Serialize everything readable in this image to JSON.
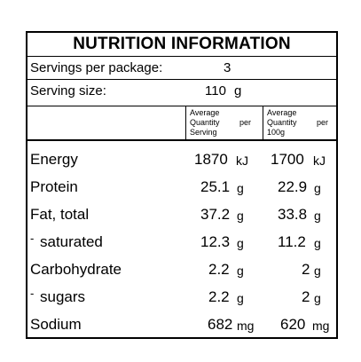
{
  "title": "NUTRITION INFORMATION",
  "servings": {
    "label": "Servings per package:",
    "value": "3"
  },
  "serving_size": {
    "label": "Serving size:",
    "value": "110",
    "unit": "g"
  },
  "header": {
    "col1": {
      "line1": "Average",
      "line2a": "Quantity",
      "line2b": "per",
      "line3": "Serving"
    },
    "col2": {
      "line1": "Average",
      "line2a": "Quantity",
      "line2b": "per",
      "line3": "100g"
    }
  },
  "rows": [
    {
      "name": "Energy",
      "per_serving": "1870",
      "per_serving_unit": "kJ",
      "per_100g": "1700",
      "per_100g_unit": "kJ"
    },
    {
      "name": "Protein",
      "per_serving": "25.1",
      "per_serving_unit": "g",
      "per_100g": "22.9",
      "per_100g_unit": "g"
    },
    {
      "name": "Fat, total",
      "per_serving": "37.2",
      "per_serving_unit": "g",
      "per_100g": "33.8",
      "per_100g_unit": "g"
    },
    {
      "name": "saturated",
      "prefix": "-",
      "per_serving": "12.3",
      "per_serving_unit": "g",
      "per_100g": "11.2",
      "per_100g_unit": "g"
    },
    {
      "name": "Carbohydrate",
      "per_serving": "2.2",
      "per_serving_unit": "g",
      "per_100g": "2",
      "per_100g_unit": "g"
    },
    {
      "name": "sugars",
      "prefix": "-",
      "per_serving": "2.2",
      "per_serving_unit": "g",
      "per_100g": "2",
      "per_100g_unit": "g"
    },
    {
      "name": "Sodium",
      "per_serving": "682",
      "per_serving_unit": "mg",
      "per_100g": "620",
      "per_100g_unit": "mg"
    }
  ]
}
